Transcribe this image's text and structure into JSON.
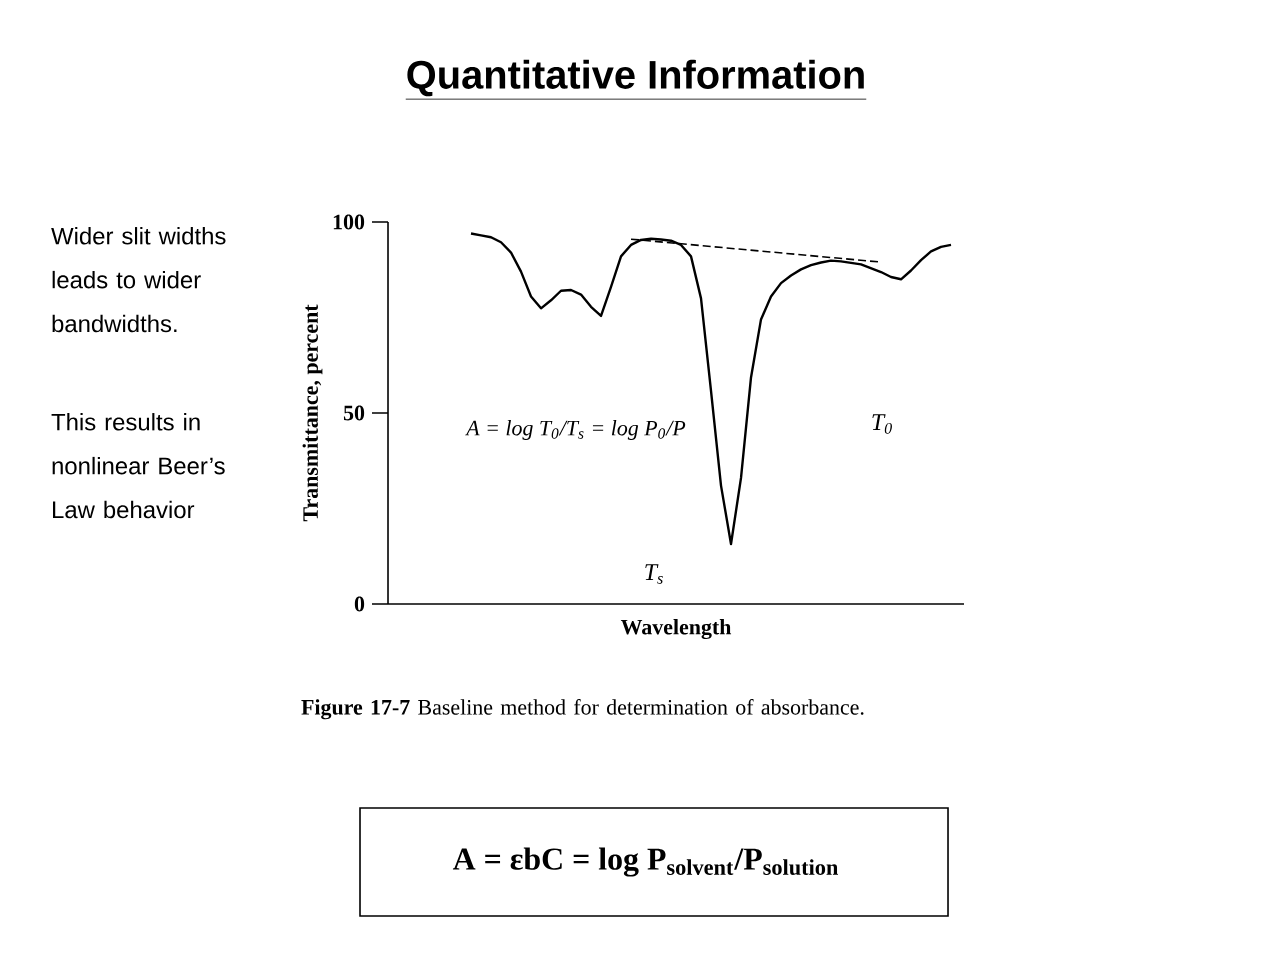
{
  "chart_data": {
    "type": "line",
    "title": "Quantitative Information",
    "xlabel": "Wavelength",
    "ylabel": "Transmittance, percent",
    "categories": [
      null,
      null,
      null,
      null,
      null,
      null,
      null,
      null,
      null,
      null,
      null,
      null,
      null,
      null,
      null,
      null,
      null,
      null,
      null,
      null,
      null,
      null,
      null,
      null,
      null,
      null,
      null,
      null,
      null,
      null,
      null,
      null,
      null,
      null,
      null,
      null,
      null,
      null,
      null,
      null,
      null,
      null,
      null,
      null,
      null,
      null,
      null,
      null,
      null,
      null,
      null,
      null,
      null,
      null,
      null,
      null,
      null,
      null
    ],
    "ylim": [
      0,
      100
    ],
    "yticks": [
      0,
      50,
      100
    ],
    "grid": false,
    "series": [
      {
        "color": "#000000",
        "line_style": "solid",
        "values": [
          null,
          null,
          null,
          null,
          null,
          null,
          null,
          null,
          97,
          96.5,
          96,
          94.7,
          92,
          87,
          80.5,
          77.4,
          79.5,
          82,
          82.2,
          81,
          77.8,
          75.4,
          83,
          91,
          94,
          95.3,
          95.6,
          95.4,
          95.1,
          94,
          91,
          80,
          55.8,
          31,
          15.7,
          33,
          59.3,
          74.5,
          80.5,
          84,
          86,
          87.6,
          88.7,
          89.4,
          89.9,
          89.7,
          89.3,
          88.9,
          87.9,
          86.9,
          85.6,
          85,
          87.3,
          90,
          92.3,
          93.5,
          94,
          null
        ]
      },
      {
        "color": "#000000",
        "line_style": "dashed",
        "values": [
          null,
          null,
          null,
          null,
          null,
          null,
          null,
          null,
          null,
          null,
          null,
          null,
          null,
          null,
          null,
          null,
          null,
          null,
          null,
          null,
          null,
          null,
          null,
          null,
          95.5,
          null,
          null,
          null,
          null,
          null,
          null,
          null,
          null,
          null,
          null,
          null,
          null,
          null,
          null,
          null,
          null,
          null,
          null,
          null,
          null,
          null,
          null,
          null,
          null,
          89.5,
          null,
          null,
          null,
          null,
          null,
          null,
          null,
          null
        ]
      }
    ],
    "annotations": [
      "Wider slit widths leads to wider bandwidths.",
      "This results in nonlinear Beer’s Law behavior",
      "A = log T$_{0}$/T$_{s}$ = log P$_{0}$/P",
      "T$_{0}$",
      "T$_{s}$",
      "**Figure 17-7** Baseline method for determination of absorbance.",
      "A = εbC = log P$_{solvent}$/P$_{solution}$"
    ]
  }
}
